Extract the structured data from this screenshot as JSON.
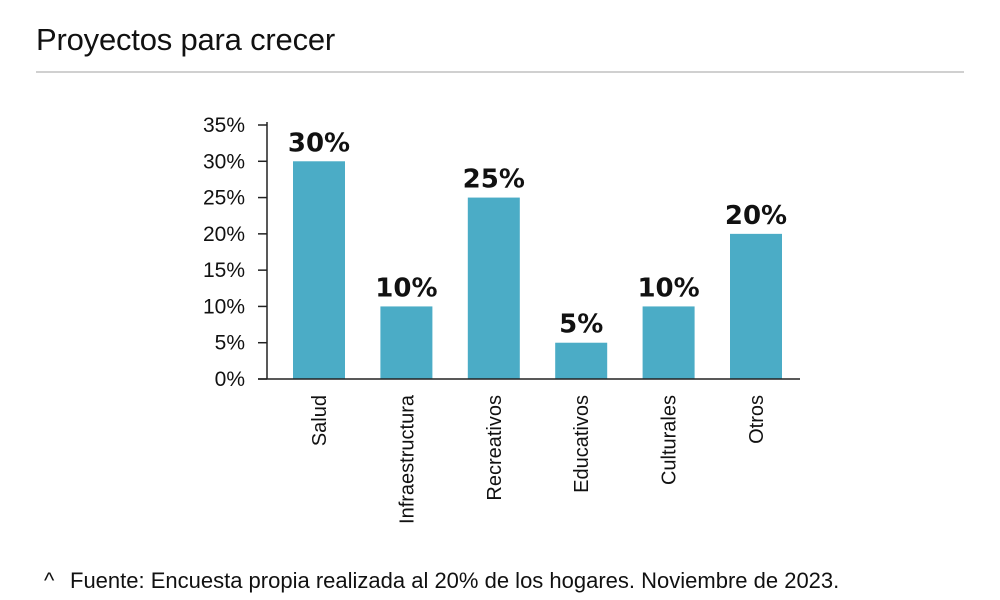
{
  "header": {
    "title": "Proyectos para crecer"
  },
  "footnote": {
    "marker": "^",
    "text": "Fuente: Encuesta propia realizada al 20% de los hogares. Noviembre de 2023."
  },
  "colors": {
    "bar": "#4bacc6",
    "axis": "#222222",
    "text": "#111111",
    "rule": "#d0d0d0"
  },
  "chart_data": {
    "type": "bar",
    "title": "",
    "xlabel": "",
    "ylabel": "",
    "categories": [
      "Salud",
      "Infraestructura",
      "Recreativos",
      "Educativos",
      "Culturales",
      "Otros"
    ],
    "values": [
      30,
      10,
      25,
      5,
      10,
      20
    ],
    "data_labels": [
      "30%",
      "10%",
      "25%",
      "5%",
      "10%",
      "20%"
    ],
    "ylim": [
      0,
      35
    ],
    "yticks": [
      0,
      5,
      10,
      15,
      20,
      25,
      30,
      35
    ],
    "ytick_labels": [
      "0%",
      "5%",
      "10%",
      "15%",
      "20%",
      "25%",
      "30%",
      "35%"
    ],
    "grid": false,
    "legend": "none"
  }
}
